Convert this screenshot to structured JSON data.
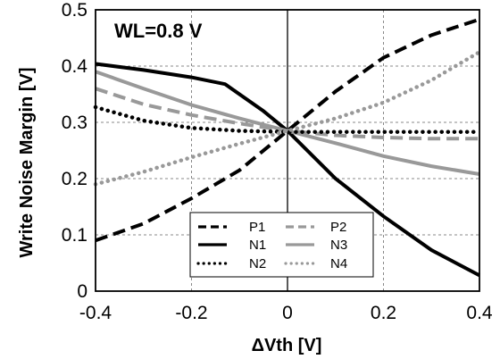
{
  "chart_data": {
    "type": "line",
    "xlabel": "ΔVth [V]",
    "ylabel": "Write Noise Margin [V]",
    "annotation": "WL=0.8 V",
    "xlim": [
      -0.4,
      0.4
    ],
    "ylim": [
      0,
      0.5
    ],
    "xticks": [
      "-0.4",
      "-0.2",
      "0",
      "0.2",
      "0.4"
    ],
    "yticks": [
      "0",
      "0.1",
      "0.2",
      "0.3",
      "0.4",
      "0.5"
    ],
    "grid": "dashed",
    "legend_position": "bottom-center",
    "series": [
      {
        "name": "P1",
        "color": "#000000",
        "style": "dashed",
        "x": [
          -0.4,
          -0.3,
          -0.2,
          -0.1,
          0,
          0.1,
          0.2,
          0.3,
          0.4
        ],
        "y": [
          0.09,
          0.12,
          0.165,
          0.215,
          0.285,
          0.355,
          0.415,
          0.455,
          0.483
        ]
      },
      {
        "name": "P2",
        "color": "#999999",
        "style": "dashed",
        "x": [
          -0.4,
          -0.3,
          -0.2,
          -0.1,
          0,
          0.1,
          0.2,
          0.3,
          0.4
        ],
        "y": [
          0.36,
          0.332,
          0.313,
          0.298,
          0.285,
          0.277,
          0.273,
          0.271,
          0.271
        ]
      },
      {
        "name": "N1",
        "color": "#000000",
        "style": "solid",
        "x": [
          -0.4,
          -0.3,
          -0.2,
          -0.13,
          -0.05,
          0,
          0.1,
          0.2,
          0.3,
          0.4
        ],
        "y": [
          0.404,
          0.393,
          0.38,
          0.368,
          0.32,
          0.285,
          0.2,
          0.133,
          0.073,
          0.028
        ]
      },
      {
        "name": "N3",
        "color": "#999999",
        "style": "solid",
        "x": [
          -0.4,
          -0.3,
          -0.2,
          -0.1,
          0,
          0.1,
          0.2,
          0.3,
          0.4
        ],
        "y": [
          0.39,
          0.36,
          0.331,
          0.307,
          0.285,
          0.263,
          0.24,
          0.222,
          0.208
        ]
      },
      {
        "name": "N2",
        "color": "#000000",
        "style": "dotted",
        "x": [
          -0.4,
          -0.3,
          -0.2,
          -0.1,
          0,
          0.1,
          0.2,
          0.3,
          0.4
        ],
        "y": [
          0.327,
          0.303,
          0.29,
          0.285,
          0.283,
          0.283,
          0.283,
          0.283,
          0.283
        ]
      },
      {
        "name": "N4",
        "color": "#999999",
        "style": "dotted",
        "x": [
          -0.4,
          -0.3,
          -0.2,
          -0.1,
          0,
          0.1,
          0.2,
          0.3,
          0.4
        ],
        "y": [
          0.19,
          0.212,
          0.238,
          0.262,
          0.285,
          0.307,
          0.335,
          0.375,
          0.425
        ]
      }
    ]
  }
}
